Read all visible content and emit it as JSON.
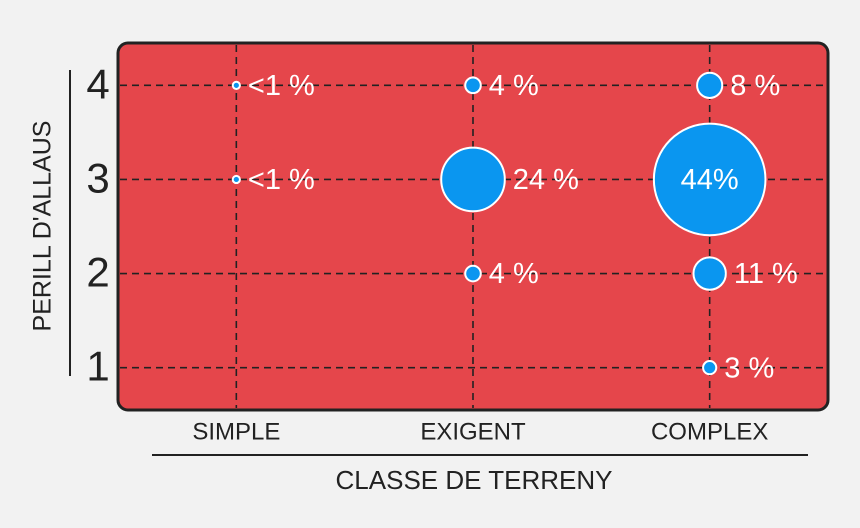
{
  "chart_data": {
    "type": "bubble",
    "xlabel": "CLASSE DE TERRENY",
    "ylabel": "PERILL D'ALLAUS",
    "categories": [
      "SIMPLE",
      "EXIGENT",
      "COMPLEX"
    ],
    "ylim": [
      0.55,
      4.45
    ],
    "yticks": [
      1,
      2,
      3,
      4
    ],
    "grid": true,
    "background": "#e5464b",
    "color": "#0a96f0",
    "x": [
      "SIMPLE",
      "SIMPLE",
      "EXIGENT",
      "EXIGENT",
      "EXIGENT",
      "COMPLEX",
      "COMPLEX",
      "COMPLEX",
      "COMPLEX"
    ],
    "y": [
      4,
      3,
      4,
      3,
      2,
      4,
      3,
      2,
      1
    ],
    "values": [
      0.5,
      0.5,
      4,
      24,
      4,
      8,
      44,
      11,
      3
    ],
    "value_labels": [
      "<1 %",
      "<1 %",
      "4 %",
      "24 %",
      "4 %",
      "8 %",
      "44%",
      "11 %",
      "3 %"
    ]
  }
}
